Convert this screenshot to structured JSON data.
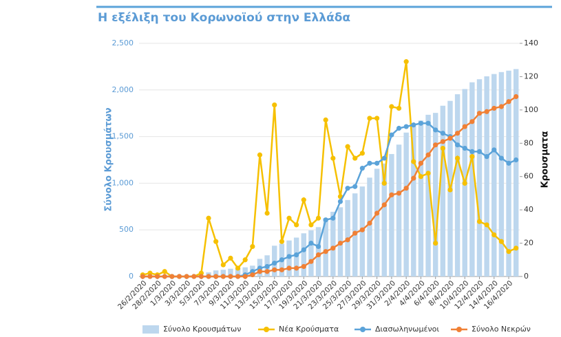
{
  "chart_data": {
    "type": "bar",
    "title": "Η εξέλιξη του Κορωνοϊού στην Ελλάδα",
    "y_label": "Σύνολο Κρουσμάτων",
    "y2_label": "Κρουσματα",
    "categories": [
      "26/2/2020",
      null,
      "28/2/2020",
      null,
      "1/3/2020",
      null,
      "3/3/2020",
      null,
      "5/3/2020",
      null,
      "7/3/2020",
      null,
      "9/3/2020",
      null,
      "11/3/2020",
      null,
      "13/3/2020",
      null,
      "15/3/2020",
      null,
      "17/3/2020",
      null,
      "19/3/2020",
      null,
      "21/3/2020",
      null,
      "23/3/2020",
      null,
      "25/3/2020",
      null,
      "27/3/2020",
      null,
      "29/3/2020",
      null,
      "31/3/2020",
      null,
      "2/4/2020",
      null,
      "4/4/2020",
      null,
      "6/4/2020",
      null,
      "8/4/2020",
      null,
      "10/4/2020",
      null,
      "12/4/2020",
      null,
      "14/4/2020",
      null,
      "16/4/2020",
      null
    ],
    "series": [
      {
        "name": "Σύνολο Κρουσμάτων",
        "type": "bar",
        "color": "#bdd7ee",
        "values": [
          1,
          3,
          4,
          7,
          7,
          7,
          7,
          7,
          9,
          44,
          65,
          72,
          83,
          88,
          98,
          116,
          189,
          227,
          330,
          351,
          386,
          417,
          463,
          494,
          529,
          623,
          694,
          742,
          820,
          891,
          965,
          1060,
          1155,
          1211,
          1313,
          1414,
          1543,
          1612,
          1672,
          1734,
          1754,
          1831,
          1883,
          1954,
          2010,
          2082,
          2115,
          2146,
          2171,
          2192,
          2207,
          2224
        ]
      },
      {
        "name": "Νέα Κρούσματα",
        "type": "line",
        "axis": "y2",
        "color": "#f6c000",
        "values": [
          1,
          2,
          1,
          3,
          0,
          0,
          0,
          0,
          2,
          35,
          21,
          7,
          11,
          5,
          10,
          18,
          73,
          38,
          103,
          21,
          35,
          31,
          46,
          31,
          35,
          94,
          71,
          48,
          78,
          71,
          74,
          95,
          95,
          56,
          102,
          101,
          129,
          69,
          60,
          62,
          20,
          77,
          52,
          71,
          56,
          72,
          33,
          31,
          25,
          21,
          15,
          17
        ]
      },
      {
        "name": "Διασωληνωμένοι",
        "type": "line",
        "axis": "y2",
        "color": "#5ba3d9",
        "values": [
          0,
          0,
          0,
          0,
          0,
          0,
          0,
          0,
          0,
          0,
          0,
          0,
          0,
          0,
          1,
          3,
          5,
          6,
          8,
          10,
          12,
          13,
          16,
          20,
          18,
          34,
          35,
          45,
          53,
          54,
          65,
          68,
          68,
          71,
          85,
          89,
          90,
          91,
          92,
          92,
          88,
          86,
          84,
          79,
          77,
          75,
          75,
          72,
          76,
          71,
          68,
          70
        ]
      },
      {
        "name": "Σύνολο Νεκρών",
        "type": "line",
        "axis": "y2",
        "color": "#f08035",
        "values": [
          0,
          0,
          0,
          0,
          0,
          0,
          0,
          0,
          0,
          0,
          0,
          0,
          0,
          0,
          0,
          1,
          3,
          3,
          4,
          4,
          5,
          5,
          6,
          9,
          13,
          15,
          17,
          20,
          22,
          26,
          28,
          32,
          38,
          43,
          49,
          50,
          53,
          59,
          68,
          73,
          79,
          81,
          83,
          86,
          90,
          93,
          98,
          99,
          101,
          102,
          105,
          108
        ]
      }
    ],
    "ylim": [
      0,
      2500
    ],
    "yticks": [
      0,
      500,
      {
        "value": 1000,
        "label": "1,000"
      },
      {
        "value": 1500,
        "label": "1,500"
      },
      {
        "value": 2000,
        "label": "2,000"
      },
      {
        "value": 2500,
        "label": "2,500"
      }
    ],
    "y2lim": [
      0,
      140
    ],
    "y2ticks": [
      0,
      20,
      40,
      60,
      80,
      100,
      120,
      140
    ],
    "grid": true,
    "legend": "bottom"
  }
}
